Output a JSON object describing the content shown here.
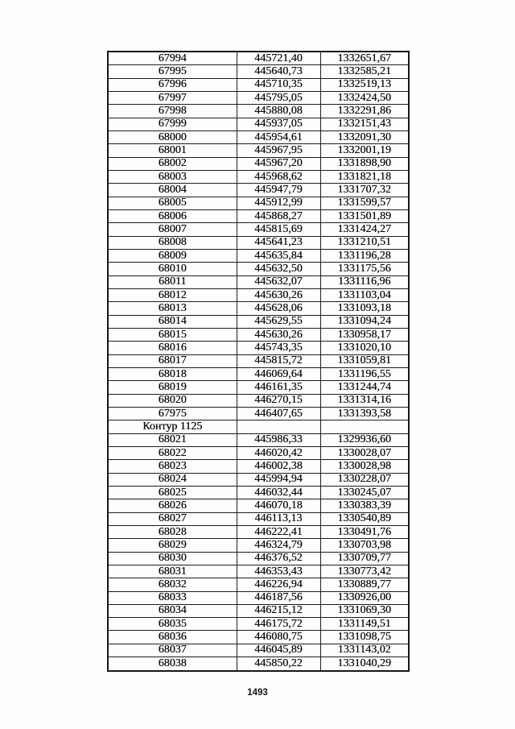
{
  "page": {
    "number": "1493"
  },
  "table": {
    "groups": [
      {
        "label": "",
        "rows": [
          [
            "67994",
            "445721,40",
            "1332651,67"
          ],
          [
            "67995",
            "445640,73",
            "1332585,21"
          ],
          [
            "67996",
            "445710,35",
            "1332519,13"
          ],
          [
            "67997",
            "445795,05",
            "1332424,50"
          ],
          [
            "67998",
            "445880,08",
            "1332291,86"
          ],
          [
            "67999",
            "445937,05",
            "1332151,43"
          ],
          [
            "68000",
            "445954,61",
            "1332091,30"
          ],
          [
            "68001",
            "445967,95",
            "1332001,19"
          ],
          [
            "68002",
            "445967,20",
            "1331898,90"
          ],
          [
            "68003",
            "445968,62",
            "1331821,18"
          ],
          [
            "68004",
            "445947,79",
            "1331707,32"
          ],
          [
            "68005",
            "445912,99",
            "1331599,57"
          ],
          [
            "68006",
            "445868,27",
            "1331501,89"
          ],
          [
            "68007",
            "445815,69",
            "1331424,27"
          ],
          [
            "68008",
            "445641,23",
            "1331210,51"
          ],
          [
            "68009",
            "445635,84",
            "1331196,28"
          ],
          [
            "68010",
            "445632,50",
            "1331175,56"
          ],
          [
            "68011",
            "445632,07",
            "1331116,96"
          ],
          [
            "68012",
            "445630,26",
            "1331103,04"
          ],
          [
            "68013",
            "445628,06",
            "1331093,18"
          ],
          [
            "68014",
            "445629,55",
            "1331094,24"
          ],
          [
            "68015",
            "445630,26",
            "1330958,17"
          ],
          [
            "68016",
            "445743,35",
            "1331020,10"
          ],
          [
            "68017",
            "445815,72",
            "1331059,81"
          ],
          [
            "68018",
            "446069,64",
            "1331196,55"
          ],
          [
            "68019",
            "446161,35",
            "1331244,74"
          ],
          [
            "68020",
            "446270,15",
            "1331314,16"
          ],
          [
            "67975",
            "446407,65",
            "1331393,58"
          ]
        ]
      },
      {
        "label": "Контур 1125",
        "rows": [
          [
            "68021",
            "445986,33",
            "1329936,60"
          ],
          [
            "68022",
            "446020,42",
            "1330028,07"
          ],
          [
            "68023",
            "446002,38",
            "1330028,98"
          ],
          [
            "68024",
            "445994,94",
            "1330228,07"
          ],
          [
            "68025",
            "446032,44",
            "1330245,07"
          ],
          [
            "68026",
            "446070,18",
            "1330383,39"
          ],
          [
            "68027",
            "446113,13",
            "1330540,89"
          ],
          [
            "68028",
            "446222,41",
            "1330491,76"
          ],
          [
            "68029",
            "446324,79",
            "1330703,98"
          ],
          [
            "68030",
            "446376,52",
            "1330709,77"
          ],
          [
            "68031",
            "446353,43",
            "1330773,42"
          ],
          [
            "68032",
            "446226,94",
            "1330889,77"
          ],
          [
            "68033",
            "446187,56",
            "1330926,00"
          ],
          [
            "68034",
            "446215,12",
            "1331069,30"
          ],
          [
            "68035",
            "446175,72",
            "1331149,51"
          ],
          [
            "68036",
            "446080,75",
            "1331098,75"
          ],
          [
            "68037",
            "446045,89",
            "1331143,02"
          ],
          [
            "68038",
            "445850,22",
            "1331040,29"
          ]
        ]
      }
    ]
  }
}
